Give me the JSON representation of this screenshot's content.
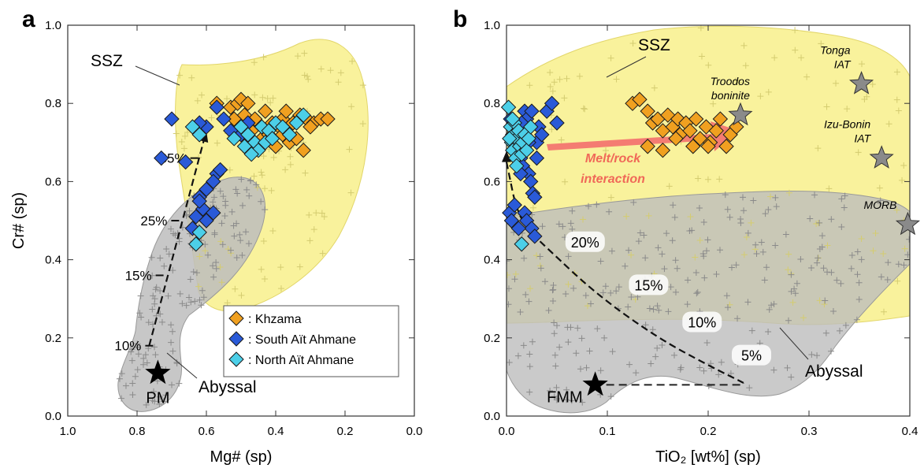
{
  "colors": {
    "ssz_fill": "#f9f29c",
    "abyssal_fill": "#bdbdbd",
    "khzama": "#f0a020",
    "south": "#2a5ad8",
    "north": "#4ccfe8",
    "arrow": "#f47c72",
    "star_ref": "#8a8a8a"
  },
  "chart_data": [
    {
      "panel_letter": "a",
      "type": "scatter",
      "xlabel": "Mg# (sp)",
      "ylabel": "Cr# (sp)",
      "xlim": [
        1.0,
        0.0
      ],
      "ylim": [
        0.0,
        1.0
      ],
      "x_reversed": true,
      "xticks": [
        "1.0",
        "0.8",
        "0.6",
        "0.4",
        "0.2",
        "0.0"
      ],
      "yticks": [
        "0.0",
        "0.2",
        "0.4",
        "0.6",
        "0.8",
        "1.0"
      ],
      "grid": false,
      "legend": {
        "placement": "bottom-right",
        "entries": [
          ": Khzama",
          ": South Aït Ahmane",
          ": North Aït Ahmane"
        ]
      },
      "field_labels": {
        "ssz": "SSZ",
        "abyssal": "Abyssal"
      },
      "pm_label": "PM",
      "pm_point": {
        "x": 0.74,
        "y": 0.11
      },
      "melting_trend": {
        "points": [
          {
            "x": 0.765,
            "y": 0.18
          },
          {
            "x": 0.6,
            "y": 0.73
          }
        ],
        "marks": [
          {
            "label": "10%",
            "x": 0.765,
            "y": 0.18
          },
          {
            "label": "15%",
            "x": 0.735,
            "y": 0.36
          },
          {
            "label": "25%",
            "x": 0.69,
            "y": 0.5
          },
          {
            "label": "35%",
            "x": 0.635,
            "y": 0.66
          }
        ]
      },
      "series": [
        {
          "name": "Khzama",
          "points": [
            [
              0.57,
              0.8
            ],
            [
              0.53,
              0.79
            ],
            [
              0.51,
              0.8
            ],
            [
              0.5,
              0.81
            ],
            [
              0.48,
              0.8
            ],
            [
              0.52,
              0.76
            ],
            [
              0.49,
              0.77
            ],
            [
              0.46,
              0.76
            ],
            [
              0.43,
              0.78
            ],
            [
              0.41,
              0.75
            ],
            [
              0.39,
              0.74
            ],
            [
              0.38,
              0.76
            ],
            [
              0.37,
              0.78
            ],
            [
              0.35,
              0.75
            ],
            [
              0.33,
              0.77
            ],
            [
              0.31,
              0.76
            ],
            [
              0.29,
              0.75
            ],
            [
              0.27,
              0.76
            ],
            [
              0.25,
              0.76
            ],
            [
              0.36,
              0.7
            ],
            [
              0.32,
              0.68
            ],
            [
              0.4,
              0.69
            ],
            [
              0.38,
              0.72
            ],
            [
              0.44,
              0.71
            ],
            [
              0.47,
              0.73
            ],
            [
              0.42,
              0.72
            ],
            [
              0.34,
              0.71
            ],
            [
              0.3,
              0.74
            ]
          ]
        },
        {
          "name": "South Aït Ahmane",
          "points": [
            [
              0.7,
              0.76
            ],
            [
              0.6,
              0.74
            ],
            [
              0.57,
              0.79
            ],
            [
              0.62,
              0.75
            ],
            [
              0.66,
              0.65
            ],
            [
              0.73,
              0.66
            ],
            [
              0.55,
              0.76
            ],
            [
              0.53,
              0.73
            ],
            [
              0.5,
              0.72
            ],
            [
              0.57,
              0.62
            ],
            [
              0.56,
              0.63
            ],
            [
              0.58,
              0.6
            ],
            [
              0.6,
              0.58
            ],
            [
              0.62,
              0.56
            ],
            [
              0.61,
              0.53
            ],
            [
              0.63,
              0.51
            ],
            [
              0.6,
              0.5
            ],
            [
              0.58,
              0.52
            ],
            [
              0.64,
              0.48
            ],
            [
              0.62,
              0.55
            ],
            [
              0.48,
              0.75
            ],
            [
              0.46,
              0.7
            ]
          ]
        },
        {
          "name": "North Aït Ahmane",
          "points": [
            [
              0.64,
              0.74
            ],
            [
              0.62,
              0.72
            ],
            [
              0.5,
              0.74
            ],
            [
              0.48,
              0.72
            ],
            [
              0.46,
              0.7
            ],
            [
              0.44,
              0.74
            ],
            [
              0.42,
              0.73
            ],
            [
              0.45,
              0.68
            ],
            [
              0.47,
              0.67
            ],
            [
              0.4,
              0.75
            ],
            [
              0.38,
              0.74
            ],
            [
              0.36,
              0.72
            ],
            [
              0.34,
              0.75
            ],
            [
              0.32,
              0.77
            ],
            [
              0.43,
              0.7
            ],
            [
              0.49,
              0.69
            ],
            [
              0.52,
              0.71
            ],
            [
              0.62,
              0.47
            ],
            [
              0.63,
              0.44
            ],
            [
              0.41,
              0.71
            ]
          ]
        }
      ]
    },
    {
      "panel_letter": "b",
      "type": "scatter",
      "xlabel": "TiO₂ [wt%] (sp)",
      "ylabel": "",
      "xlim": [
        0.0,
        0.4
      ],
      "ylim": [
        0.0,
        1.0
      ],
      "xticks": [
        "0.0",
        "0.1",
        "0.2",
        "0.3",
        "0.4"
      ],
      "yticks": [
        "0.0",
        "0.2",
        "0.4",
        "0.6",
        "0.8",
        "1.0"
      ],
      "grid": false,
      "field_labels": {
        "ssz": "SSZ",
        "abyssal": "Abyssal"
      },
      "arrow_label": [
        "Melt/rock",
        "interaction"
      ],
      "fmm_label": "FMM",
      "fmm_point": {
        "x": 0.088,
        "y": 0.08
      },
      "reference_stars": [
        {
          "label": [
            "Troodos",
            "boninite"
          ],
          "x": 0.232,
          "y": 0.77
        },
        {
          "label": [
            "Tonga",
            "IAT"
          ],
          "x": 0.352,
          "y": 0.85
        },
        {
          "label": [
            "Izu-Bonin",
            "IAT"
          ],
          "x": 0.372,
          "y": 0.66
        },
        {
          "label": [
            "MORB"
          ],
          "x": 0.398,
          "y": 0.49
        }
      ],
      "melting_curve": {
        "points": [
          {
            "x": 0.0,
            "y": 0.65
          },
          {
            "x": 0.012,
            "y": 0.5
          },
          {
            "x": 0.04,
            "y": 0.43
          },
          {
            "x": 0.09,
            "y": 0.31
          },
          {
            "x": 0.15,
            "y": 0.2
          },
          {
            "x": 0.2,
            "y": 0.13
          },
          {
            "x": 0.235,
            "y": 0.085
          }
        ],
        "marks": [
          {
            "label": "20%",
            "x": 0.06,
            "y": 0.44
          },
          {
            "label": "15%",
            "x": 0.123,
            "y": 0.33
          },
          {
            "label": "10%",
            "x": 0.176,
            "y": 0.235
          },
          {
            "label": "5%",
            "x": 0.225,
            "y": 0.15
          }
        ]
      },
      "series": [
        {
          "name": "Khzama",
          "points": [
            [
              0.125,
              0.8
            ],
            [
              0.132,
              0.81
            ],
            [
              0.14,
              0.78
            ],
            [
              0.145,
              0.75
            ],
            [
              0.15,
              0.76
            ],
            [
              0.155,
              0.73
            ],
            [
              0.16,
              0.77
            ],
            [
              0.165,
              0.74
            ],
            [
              0.17,
              0.76
            ],
            [
              0.172,
              0.72
            ],
            [
              0.178,
              0.75
            ],
            [
              0.182,
              0.73
            ],
            [
              0.188,
              0.76
            ],
            [
              0.192,
              0.71
            ],
            [
              0.198,
              0.74
            ],
            [
              0.202,
              0.7
            ],
            [
              0.208,
              0.73
            ],
            [
              0.212,
              0.76
            ],
            [
              0.218,
              0.69
            ],
            [
              0.222,
              0.72
            ],
            [
              0.14,
              0.69
            ],
            [
              0.155,
              0.68
            ],
            [
              0.168,
              0.71
            ],
            [
              0.185,
              0.69
            ],
            [
              0.2,
              0.69
            ],
            [
              0.228,
              0.74
            ]
          ]
        },
        {
          "name": "South Aït Ahmane",
          "points": [
            [
              0.004,
              0.76
            ],
            [
              0.006,
              0.72
            ],
            [
              0.008,
              0.7
            ],
            [
              0.01,
              0.74
            ],
            [
              0.012,
              0.68
            ],
            [
              0.014,
              0.66
            ],
            [
              0.016,
              0.64
            ],
            [
              0.018,
              0.78
            ],
            [
              0.02,
              0.76
            ],
            [
              0.022,
              0.62
            ],
            [
              0.024,
              0.6
            ],
            [
              0.026,
              0.57
            ],
            [
              0.028,
              0.56
            ],
            [
              0.03,
              0.7
            ],
            [
              0.032,
              0.74
            ],
            [
              0.035,
              0.72
            ],
            [
              0.04,
              0.78
            ],
            [
              0.045,
              0.8
            ],
            [
              0.018,
              0.52
            ],
            [
              0.02,
              0.5
            ],
            [
              0.025,
              0.48
            ],
            [
              0.028,
              0.46
            ],
            [
              0.003,
              0.52
            ],
            [
              0.005,
              0.5
            ],
            [
              0.008,
              0.54
            ],
            [
              0.012,
              0.48
            ],
            [
              0.014,
              0.62
            ],
            [
              0.03,
              0.66
            ],
            [
              0.015,
              0.75
            ],
            [
              0.025,
              0.78
            ],
            [
              0.022,
              0.7
            ],
            [
              0.05,
              0.75
            ]
          ]
        },
        {
          "name": "North Aït Ahmane",
          "points": [
            [
              0.002,
              0.79
            ],
            [
              0.004,
              0.74
            ],
            [
              0.005,
              0.7
            ],
            [
              0.006,
              0.68
            ],
            [
              0.007,
              0.72
            ],
            [
              0.008,
              0.75
            ],
            [
              0.009,
              0.66
            ],
            [
              0.01,
              0.71
            ],
            [
              0.012,
              0.73
            ],
            [
              0.013,
              0.69
            ],
            [
              0.015,
              0.67
            ],
            [
              0.016,
              0.7
            ],
            [
              0.018,
              0.72
            ],
            [
              0.02,
              0.68
            ],
            [
              0.022,
              0.71
            ],
            [
              0.024,
              0.74
            ],
            [
              0.015,
              0.44
            ],
            [
              0.01,
              0.64
            ],
            [
              0.003,
              0.71
            ],
            [
              0.006,
              0.76
            ]
          ]
        }
      ]
    }
  ]
}
